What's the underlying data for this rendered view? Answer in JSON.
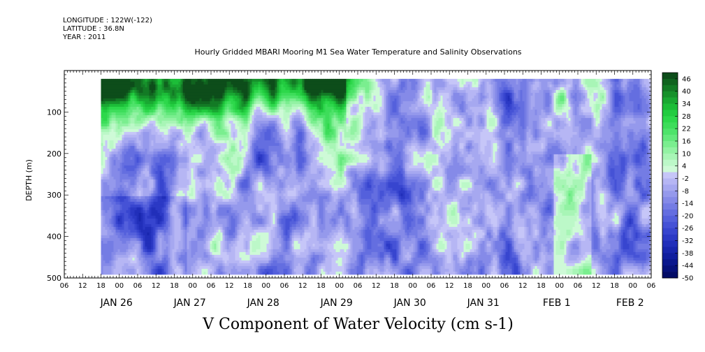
{
  "header": {
    "longitude": "LONGITUDE : 122W(-122)",
    "latitude": "LATITUDE : 36.8N",
    "year": "YEAR : 2011"
  },
  "chart_data": {
    "type": "heatmap",
    "title": "Hourly Gridded MBARI Mooring M1 Sea Water Temperature and Salinity Observations",
    "xlabel": "V Component of Water Velocity (cm s-1)",
    "ylabel": "DEPTH (m)",
    "y_axis": {
      "range": [
        500,
        0
      ],
      "ticks": [
        "100",
        "200",
        "300",
        "400",
        "500"
      ],
      "tick_values": [
        100,
        200,
        300,
        400,
        500
      ]
    },
    "x_axis": {
      "hour_ticks": [
        "06",
        "12",
        "18",
        "00",
        "06",
        "12",
        "18",
        "00",
        "06",
        "12",
        "18",
        "00",
        "06",
        "12",
        "18",
        "00",
        "06",
        "12",
        "18",
        "00",
        "06",
        "12",
        "18",
        "00",
        "06",
        "12",
        "18",
        "00",
        "06",
        "12",
        "18",
        "00",
        "06"
      ],
      "day_labels": [
        "JAN 26",
        "JAN 27",
        "JAN 28",
        "JAN 29",
        "JAN 30",
        "JAN 31",
        "FEB  1",
        "FEB  2"
      ],
      "start_hour_offset": 6,
      "range_hours": [
        0,
        192
      ]
    },
    "data_extent": {
      "hours": [
        12,
        191
      ],
      "depth": [
        20,
        485
      ]
    },
    "colorbar": {
      "labels": [
        "46",
        "40",
        "34",
        "28",
        "22",
        "16",
        "10",
        "4",
        "-2",
        "-8",
        "-14",
        "-20",
        "-26",
        "-32",
        "-38",
        "-44",
        "-50"
      ],
      "levels": [
        49,
        46,
        43,
        40,
        37,
        34,
        31,
        28,
        25,
        22,
        19,
        16,
        13,
        10,
        7,
        4,
        1,
        -2,
        -5,
        -8,
        -11,
        -14,
        -17,
        -20,
        -23,
        -26,
        -29,
        -32,
        -35,
        -38,
        -41,
        -44,
        -47,
        -50
      ],
      "colors_positive": [
        "#0d4d1a",
        "#10631f",
        "#137a25",
        "#16912b",
        "#19a832",
        "#1cbd38",
        "#22cc40",
        "#2dd84b",
        "#3ddd5a",
        "#4ee36a",
        "#63e87c",
        "#7aee8f",
        "#92f2a3",
        "#a8f5b6",
        "#bcf8c8",
        "#cefad7"
      ],
      "colors_negative": [
        "#c6c6f8",
        "#b6b6f4",
        "#a6a8f0",
        "#9599ec",
        "#858ae8",
        "#747ce4",
        "#646ee0",
        "#5460dc",
        "#4552d6",
        "#3745cf",
        "#2b39c5",
        "#212fba",
        "#1826ad",
        "#101e9e",
        "#0a178d",
        "#06117a",
        "#030c66"
      ]
    }
  }
}
